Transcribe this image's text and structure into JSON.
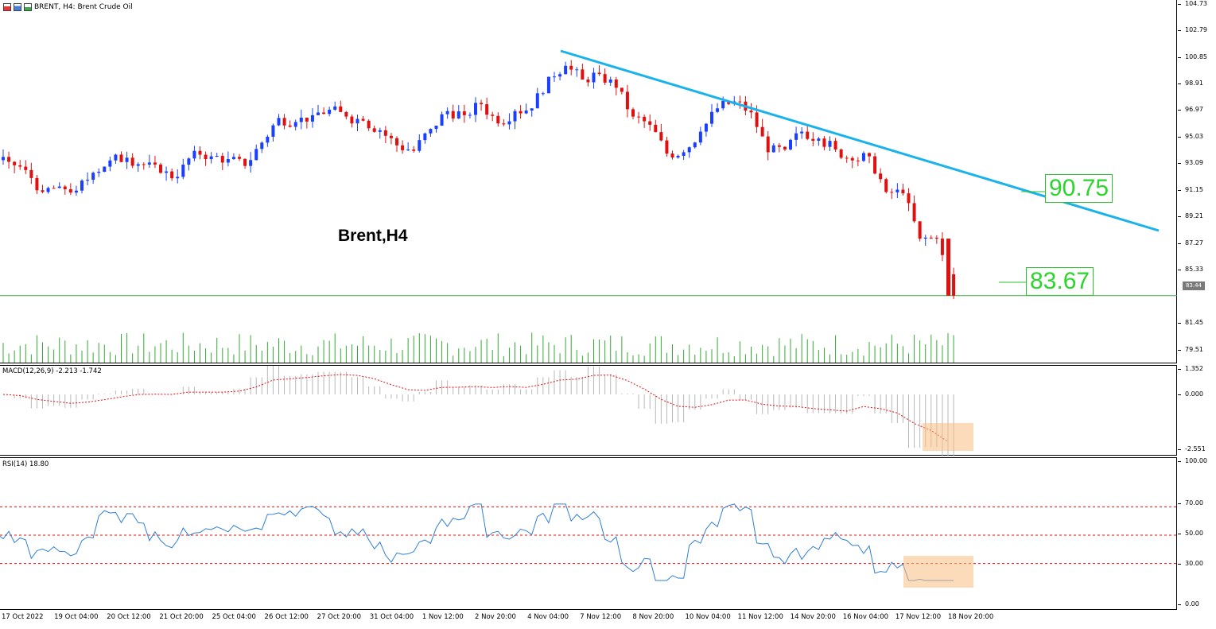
{
  "header": {
    "symbol_text": "BRENT, H4:  Brent Crude Oil",
    "icons": [
      "chart-icon",
      "bars-icon",
      "window-icon"
    ]
  },
  "chart_title": "Brent,H4",
  "annotations": {
    "resistance_label": "90.75",
    "current_label": "83.67"
  },
  "price_scale": [
    "104.73",
    "102.79",
    "100.85",
    "98.91",
    "96.97",
    "95.03",
    "93.09",
    "91.15",
    "89.21",
    "87.27",
    "85.33",
    "81.45",
    "79.51"
  ],
  "current_price_tag": "83.44",
  "macd": {
    "label": "MACD(12,26,9) -2.213 -1.742",
    "scale": [
      "1.352",
      "0.000",
      "-2.551"
    ]
  },
  "rsi": {
    "label": "RSI(14) 18.80",
    "scale": [
      "100.00",
      "70.00",
      "50.00",
      "30.00",
      "0.00"
    ],
    "levels": [
      70,
      50,
      30
    ]
  },
  "time_axis": [
    "17 Oct 2022",
    "19 Oct 04:00",
    "20 Oct 12:00",
    "21 Oct 20:00",
    "25 Oct 04:00",
    "26 Oct 12:00",
    "27 Oct 20:00",
    "31 Oct 04:00",
    "1 Nov 12:00",
    "2 Nov 20:00",
    "4 Nov 04:00",
    "7 Nov 12:00",
    "8 Nov 20:00",
    "10 Nov 04:00",
    "11 Nov 12:00",
    "14 Nov 20:00",
    "16 Nov 04:00",
    "17 Nov 12:00",
    "18 Nov 20:00"
  ],
  "colors": {
    "bull": "#1a3fff",
    "bear": "#e01010",
    "trendline": "#1ab2ea",
    "label_green": "#2bd52b",
    "volume": "#33aa33",
    "macd_signal": "#e01010",
    "rsi_line": "#2f7fd6",
    "rsi_levels": "#e01010",
    "highlight": "#fabe82"
  },
  "chart_data": {
    "type": "line",
    "series": [
      {
        "values": [
          93.2,
          92.6,
          91.0,
          91.4,
          91.1,
          92.4,
          93.3,
          93.5,
          93.0,
          92.4,
          92.1,
          94.0,
          93.6,
          93.4,
          92.9,
          94.6,
          96.4,
          96.1,
          96.6,
          97.0,
          96.5,
          96.2,
          95.5,
          94.4,
          94.0,
          95.6,
          96.9,
          96.6,
          97.4,
          96.0,
          96.9,
          97.1,
          99.4,
          100.2,
          99.2,
          99.6,
          98.6,
          96.5,
          95.9,
          93.8,
          93.9,
          95.4,
          97.1,
          97.6,
          96.8,
          93.9,
          94.1,
          95.4,
          94.9,
          94.1,
          93.3,
          93.6,
          91.0,
          90.9,
          87.6,
          87.6,
          83.44
        ]
      }
    ],
    "ylim": [
      78.5,
      105.0
    ]
  }
}
